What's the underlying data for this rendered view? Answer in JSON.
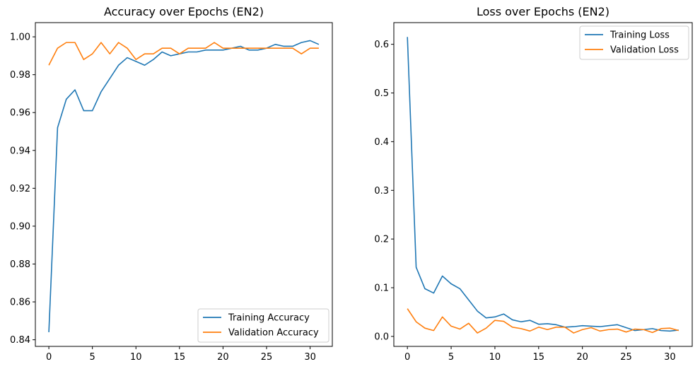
{
  "chart_data": [
    {
      "type": "line",
      "title": "Accuracy over Epochs (EN2)",
      "xlabel": "",
      "ylabel": "",
      "xlim": [
        -1.55,
        32.55
      ],
      "ylim": [
        0.8365,
        1.0075
      ],
      "xticks": [
        0,
        5,
        10,
        15,
        20,
        25,
        30
      ],
      "yticks": [
        0.84,
        0.86,
        0.88,
        0.9,
        0.92,
        0.94,
        0.96,
        0.98,
        1.0
      ],
      "ytick_labels": [
        "0.84",
        "0.86",
        "0.88",
        "0.90",
        "0.92",
        "0.94",
        "0.96",
        "0.98",
        "1.00"
      ],
      "grid": false,
      "legend_position": "lower-right",
      "series": [
        {
          "name": "Training Accuracy",
          "color": "#1f77b4",
          "values": [
            0.844,
            0.952,
            0.967,
            0.972,
            0.961,
            0.961,
            0.971,
            0.978,
            0.985,
            0.989,
            0.987,
            0.985,
            0.988,
            0.992,
            0.99,
            0.991,
            0.992,
            0.992,
            0.993,
            0.993,
            0.993,
            0.994,
            0.995,
            0.993,
            0.993,
            0.994,
            0.996,
            0.995,
            0.995,
            0.997,
            0.998,
            0.996
          ]
        },
        {
          "name": "Validation Accuracy",
          "color": "#ff7f0e",
          "values": [
            0.985,
            0.994,
            0.997,
            0.997,
            0.988,
            0.991,
            0.997,
            0.991,
            0.997,
            0.994,
            0.988,
            0.991,
            0.991,
            0.994,
            0.994,
            0.991,
            0.994,
            0.994,
            0.994,
            0.997,
            0.994,
            0.994,
            0.994,
            0.994,
            0.994,
            0.994,
            0.994,
            0.994,
            0.994,
            0.991,
            0.994,
            0.994
          ]
        }
      ]
    },
    {
      "type": "line",
      "title": "Loss over Epochs (EN2)",
      "xlabel": "",
      "ylabel": "",
      "xlim": [
        -1.55,
        32.55
      ],
      "ylim": [
        -0.0205,
        0.6445
      ],
      "xticks": [
        0,
        5,
        10,
        15,
        20,
        25,
        30
      ],
      "yticks": [
        0.0,
        0.1,
        0.2,
        0.3,
        0.4,
        0.5,
        0.6
      ],
      "ytick_labels": [
        "0.0",
        "0.1",
        "0.2",
        "0.3",
        "0.4",
        "0.5",
        "0.6"
      ],
      "grid": false,
      "legend_position": "upper-right",
      "series": [
        {
          "name": "Training Loss",
          "color": "#1f77b4",
          "values": [
            0.615,
            0.142,
            0.098,
            0.089,
            0.124,
            0.108,
            0.098,
            0.075,
            0.052,
            0.038,
            0.04,
            0.046,
            0.034,
            0.03,
            0.033,
            0.025,
            0.026,
            0.024,
            0.019,
            0.02,
            0.022,
            0.021,
            0.02,
            0.022,
            0.024,
            0.018,
            0.012,
            0.014,
            0.016,
            0.012,
            0.011,
            0.013
          ]
        },
        {
          "name": "Validation Loss",
          "color": "#ff7f0e",
          "values": [
            0.057,
            0.03,
            0.017,
            0.012,
            0.04,
            0.021,
            0.015,
            0.027,
            0.007,
            0.017,
            0.033,
            0.031,
            0.019,
            0.016,
            0.011,
            0.019,
            0.014,
            0.019,
            0.019,
            0.007,
            0.014,
            0.018,
            0.011,
            0.014,
            0.015,
            0.009,
            0.015,
            0.014,
            0.008,
            0.016,
            0.017,
            0.012
          ]
        }
      ]
    }
  ]
}
